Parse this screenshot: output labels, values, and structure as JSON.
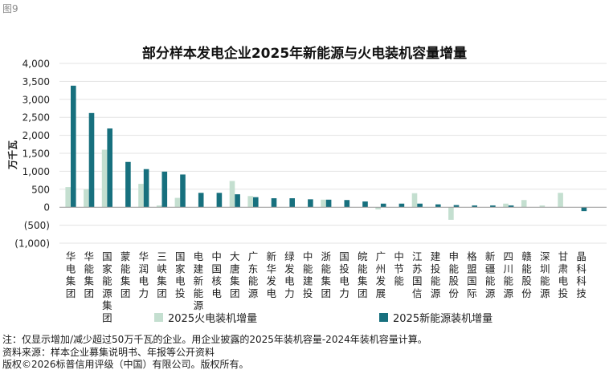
{
  "figure_label": "图9",
  "chart_data": {
    "type": "bar",
    "title": "部分样本发电企业2025年新能源与火电装机容量增量",
    "ylabel": "万千瓦",
    "ylim": [
      -1000,
      4000
    ],
    "yticks": [
      -1000,
      -500,
      0,
      500,
      1000,
      1500,
      2000,
      2500,
      3000,
      3500,
      4000
    ],
    "ytick_labels": [
      "(1,000)",
      "(500)",
      "0",
      "500",
      "1,000",
      "1,500",
      "2,000",
      "2,500",
      "3,000",
      "3,500",
      "4,000"
    ],
    "categories": [
      "华电集团",
      "华能集团",
      "国家能源集团",
      "蒙能集团",
      "华润电力",
      "三峡集团",
      "国家电投",
      "电建新能源",
      "中国核电",
      "大唐集团",
      "广东能源",
      "新华发电",
      "绿发电力",
      "中能建投",
      "浙能集团",
      "国投电力",
      "皖能集团",
      "广州发展",
      "中节能",
      "江苏国信",
      "建投能源",
      "申能股份",
      "格盟国际",
      "新疆能源",
      "四川能源",
      "赣能股份",
      "深圳能源",
      "甘肃电投",
      "晶科科技"
    ],
    "series": [
      {
        "name": "2025火电装机增量",
        "color": "#c4dfd0",
        "values": [
          560,
          500,
          1600,
          0,
          650,
          50,
          260,
          0,
          0,
          730,
          310,
          0,
          0,
          0,
          210,
          0,
          0,
          -60,
          0,
          390,
          0,
          -350,
          0,
          0,
          100,
          200,
          50,
          400,
          0
        ]
      },
      {
        "name": "2025新能源装机增量",
        "color": "#17707e",
        "values": [
          3380,
          2620,
          2190,
          1260,
          1060,
          990,
          910,
          400,
          400,
          360,
          280,
          250,
          250,
          220,
          210,
          200,
          160,
          100,
          100,
          100,
          80,
          60,
          50,
          50,
          50,
          0,
          0,
          0,
          -110
        ]
      }
    ],
    "legend": "bottom"
  },
  "notes": [
    "注：仅显示增加/减少超过50万千瓦的企业。用企业披露的2025年装机容量-2024年装机容量计算。",
    "资料来源：样本企业募集说明书、年报等公开资料",
    "版权©2026标普信用评级（中国）有限公司。版权所有。"
  ]
}
